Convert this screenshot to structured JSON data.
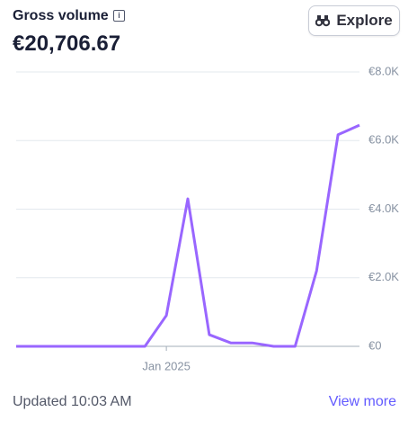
{
  "header": {
    "title": "Gross volume",
    "amount": "€20,706.67"
  },
  "button": {
    "label": "Explore"
  },
  "footer": {
    "updated": "Updated 10:03 AM",
    "link": "View more"
  },
  "chart_data": {
    "type": "line",
    "categories": [
      null,
      null,
      null,
      null,
      null,
      null,
      null,
      "Jan 2025",
      null,
      null,
      null,
      null,
      null,
      null,
      null,
      null,
      null
    ],
    "series": [
      {
        "color": "#9966ff",
        "values": [
          0,
          0,
          0,
          0,
          0,
          0,
          0,
          0.9,
          4.3,
          0.34,
          0.1,
          0.1,
          0,
          0,
          2.2,
          6.17,
          6.45
        ]
      }
    ],
    "ylim": [
      0,
      8
    ],
    "yticks": [
      {
        "value": 0,
        "label": "€0"
      },
      {
        "value": 2,
        "label": "€2.0K"
      },
      {
        "value": 4,
        "label": "€4.0K"
      },
      {
        "value": 6,
        "label": "€6.0K"
      },
      {
        "value": 8,
        "label": "€8.0K"
      }
    ],
    "grid": true
  }
}
